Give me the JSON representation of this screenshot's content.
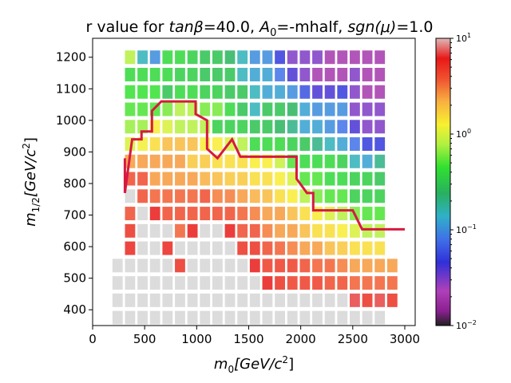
{
  "chart_data": {
    "type": "heatmap",
    "title": {
      "prefix": "r value for ",
      "tanb_label": "tanβ",
      "tanb_value": "=40.0, ",
      "a0_label": "A",
      "a0_sub": "0",
      "a0_value": "=-mhalf, ",
      "sgn_label": "sgn(μ)",
      "sgn_value": "=1.0"
    },
    "xlabel": {
      "var": "m",
      "sub": "0",
      "unit": "[GeV/c",
      "sup": "2",
      "close": "]"
    },
    "ylabel": {
      "var": "m",
      "sub": "1/2",
      "unit": "[GeV/c",
      "sup": "2",
      "close": "]"
    },
    "xlim": [
      0,
      3100
    ],
    "ylim": [
      350,
      1260
    ],
    "xticks": [
      0,
      500,
      1000,
      1500,
      2000,
      2500,
      3000
    ],
    "yticks": [
      400,
      500,
      600,
      700,
      800,
      900,
      1000,
      1100,
      1200
    ],
    "x_step": 120,
    "y_step": 55,
    "x_grid_start": 240,
    "y_grid_start": 400,
    "colorbar": {
      "scale": "log",
      "min": 0.01,
      "max": 10,
      "ticks": [
        {
          "value": 10,
          "base": "10",
          "exp": "1"
        },
        {
          "value": 1,
          "base": "10",
          "exp": "0"
        },
        {
          "value": 0.1,
          "base": "10",
          "exp": "−1"
        },
        {
          "value": 0.01,
          "base": "10",
          "exp": "−2"
        }
      ]
    },
    "cells": [
      {
        "y": 1200,
        "x_start": 360,
        "values": [
          0.8,
          0.15,
          0.1,
          0.4,
          0.4,
          0.35,
          0.3,
          0.3,
          0.25,
          0.15,
          0.1,
          0.1,
          0.05,
          0.03,
          0.03,
          0.03,
          0.02,
          0.02,
          0.02,
          0.02,
          0.02
        ]
      },
      {
        "y": 1145,
        "x_start": 360,
        "values": [
          0.4,
          0.4,
          0.4,
          0.4,
          0.35,
          0.35,
          0.3,
          0.3,
          0.3,
          0.15,
          0.12,
          0.12,
          0.08,
          0.04,
          0.03,
          0.02,
          0.02,
          0.02,
          0.03,
          0.02,
          0.02
        ]
      },
      {
        "y": 1090,
        "x_start": 360,
        "values": [
          0.45,
          0.45,
          0.45,
          0.3,
          0.4,
          0.4,
          0.35,
          0.35,
          0.3,
          0.3,
          0.15,
          0.12,
          0.12,
          0.1,
          0.06,
          0.04,
          0.04,
          0.05,
          0.03,
          0.02,
          0.02
        ]
      },
      {
        "y": 1035,
        "x_start": 360,
        "values": [
          0.5,
          0.5,
          0.5,
          0.6,
          0.8,
          0.8,
          0.6,
          0.6,
          0.4,
          0.3,
          0.15,
          0.3,
          0.3,
          0.25,
          0.12,
          0.1,
          0.1,
          0.1,
          0.03,
          0.03,
          0.03
        ]
      },
      {
        "y": 980,
        "x_start": 360,
        "values": [
          0.7,
          0.7,
          1.3,
          1.0,
          0.8,
          0.8,
          0.8,
          0.35,
          0.35,
          0.35,
          0.3,
          0.3,
          0.25,
          0.2,
          0.12,
          0.12,
          0.1,
          0.08,
          0.04,
          0.03,
          0.03
        ]
      },
      {
        "y": 925,
        "x_start": 360,
        "values": [
          1.0,
          1.2,
          1.5,
          2.0,
          2.0,
          2.0,
          1.3,
          1.3,
          1.0,
          0.8,
          0.4,
          0.4,
          0.4,
          0.35,
          0.3,
          0.2,
          0.15,
          0.12,
          0.08,
          0.05,
          0.05
        ]
      },
      {
        "y": 870,
        "x_start": 360,
        "values": [
          2.5,
          2.5,
          2.5,
          2.5,
          2.5,
          1.8,
          1.8,
          1.5,
          1.5,
          1.5,
          1.3,
          1.3,
          0.9,
          0.5,
          0.4,
          0.4,
          0.4,
          0.35,
          0.15,
          0.12,
          0.2
        ]
      },
      {
        "y": 815,
        "x_start": 360,
        "values": [
          4.0,
          4.0,
          2.5,
          2.5,
          2.5,
          2.5,
          2.2,
          2.0,
          1.8,
          1.8,
          1.5,
          1.5,
          1.3,
          1.0,
          0.5,
          0.5,
          0.4,
          0.4,
          0.35,
          0.35,
          0.3
        ]
      },
      {
        "y": 760,
        "x_start": 360,
        "values": [
          11,
          4.0,
          3.5,
          3.5,
          3.5,
          3.5,
          4.0,
          3.0,
          3.0,
          2.5,
          2.2,
          2.0,
          1.5,
          1.3,
          0.8,
          0.6,
          0.5,
          0.5,
          0.35,
          0.35,
          0.35
        ]
      },
      {
        "y": 705,
        "x_start": 360,
        "values": [
          4.0,
          12,
          6.0,
          4.0,
          4.0,
          4.0,
          4.0,
          4.0,
          4.0,
          3.5,
          3.0,
          2.5,
          2.5,
          2.0,
          1.5,
          1.3,
          1.0,
          0.8,
          0.6,
          0.5,
          0.5
        ]
      },
      {
        "y": 650,
        "x_start": 360,
        "values": [
          5.0,
          12,
          12,
          12,
          3.5,
          6.0,
          12,
          12,
          6.0,
          4.0,
          4.0,
          3.0,
          2.5,
          2.5,
          2.0,
          1.5,
          1.5,
          1.3,
          1.0,
          0.8,
          0.8
        ]
      },
      {
        "y": 595,
        "x_start": 360,
        "values": [
          5.5,
          12,
          12,
          5.5,
          12,
          12,
          12,
          12,
          12,
          5.0,
          5.0,
          4.0,
          3.5,
          3.0,
          2.5,
          2.5,
          2.0,
          1.8,
          1.5,
          1.5,
          1.5
        ]
      },
      {
        "y": 540,
        "x_start": 240,
        "values": [
          12,
          12,
          12,
          12,
          12,
          5.0,
          12,
          12,
          12,
          12,
          12,
          6.0,
          4.5,
          4.5,
          4.5,
          4.0,
          3.5,
          3.5,
          3.0,
          2.5,
          2.5,
          2.5,
          2.5
        ]
      },
      {
        "y": 485,
        "x_start": 240,
        "values": [
          12,
          12,
          12,
          12,
          12,
          12,
          12,
          12,
          12,
          12,
          12,
          12,
          6.0,
          5.0,
          4.5,
          4.5,
          4.5,
          4.0,
          4.0,
          3.5,
          3.5,
          3.5,
          3.5
        ]
      },
      {
        "y": 430,
        "x_start": 240,
        "values": [
          12,
          12,
          12,
          12,
          12,
          12,
          12,
          12,
          12,
          12,
          12,
          12,
          12,
          12,
          12,
          12,
          12,
          12,
          12,
          7.0,
          5.0,
          7.0,
          5.0
        ]
      },
      {
        "y": 375,
        "x_start": 240,
        "values": [
          12,
          12,
          12,
          12,
          12,
          12,
          12,
          12,
          12,
          12,
          12,
          12,
          12,
          12,
          12,
          12,
          12,
          12,
          12,
          12,
          12,
          12
        ]
      }
    ],
    "contour": {
      "color": "#d7193f",
      "points": [
        [
          310,
          880
        ],
        [
          310,
          770
        ],
        [
          380,
          940
        ],
        [
          470,
          940
        ],
        [
          470,
          965
        ],
        [
          570,
          965
        ],
        [
          570,
          1030
        ],
        [
          660,
          1060
        ],
        [
          990,
          1060
        ],
        [
          990,
          1020
        ],
        [
          1100,
          1000
        ],
        [
          1100,
          910
        ],
        [
          1200,
          880
        ],
        [
          1340,
          940
        ],
        [
          1420,
          885
        ],
        [
          1960,
          885
        ],
        [
          1960,
          815
        ],
        [
          2060,
          770
        ],
        [
          2120,
          770
        ],
        [
          2120,
          715
        ],
        [
          2500,
          715
        ],
        [
          2590,
          655
        ],
        [
          3000,
          655
        ]
      ]
    }
  }
}
